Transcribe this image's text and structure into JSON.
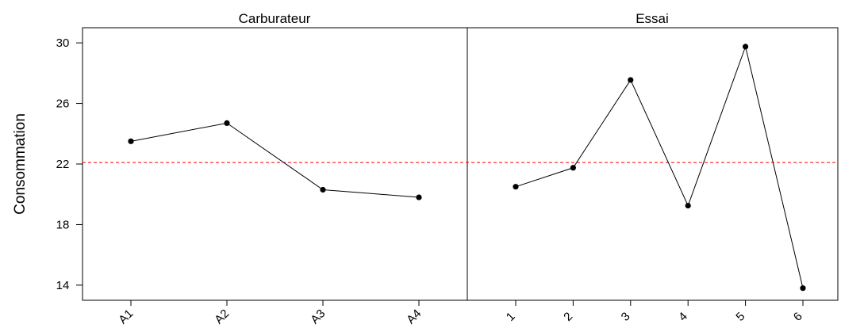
{
  "chart_data": {
    "type": "line",
    "ylabel": "Consommation",
    "reference_line": {
      "y": 22.1,
      "color": "#ff0000",
      "style": "dashed"
    },
    "ylim": [
      13,
      31
    ],
    "yticks": [
      "14",
      "18",
      "22",
      "26",
      "30"
    ],
    "panels": [
      {
        "title": "Carburateur",
        "categories": [
          "A1",
          "A2",
          "A3",
          "A4"
        ],
        "values": [
          23.5,
          24.7,
          20.3,
          19.8
        ]
      },
      {
        "title": "Essai",
        "categories": [
          "1",
          "2",
          "3",
          "4",
          "5",
          "6"
        ],
        "values": [
          20.5,
          21.75,
          27.55,
          19.25,
          29.75,
          13.8
        ]
      }
    ],
    "grid": false,
    "legend": "none"
  }
}
